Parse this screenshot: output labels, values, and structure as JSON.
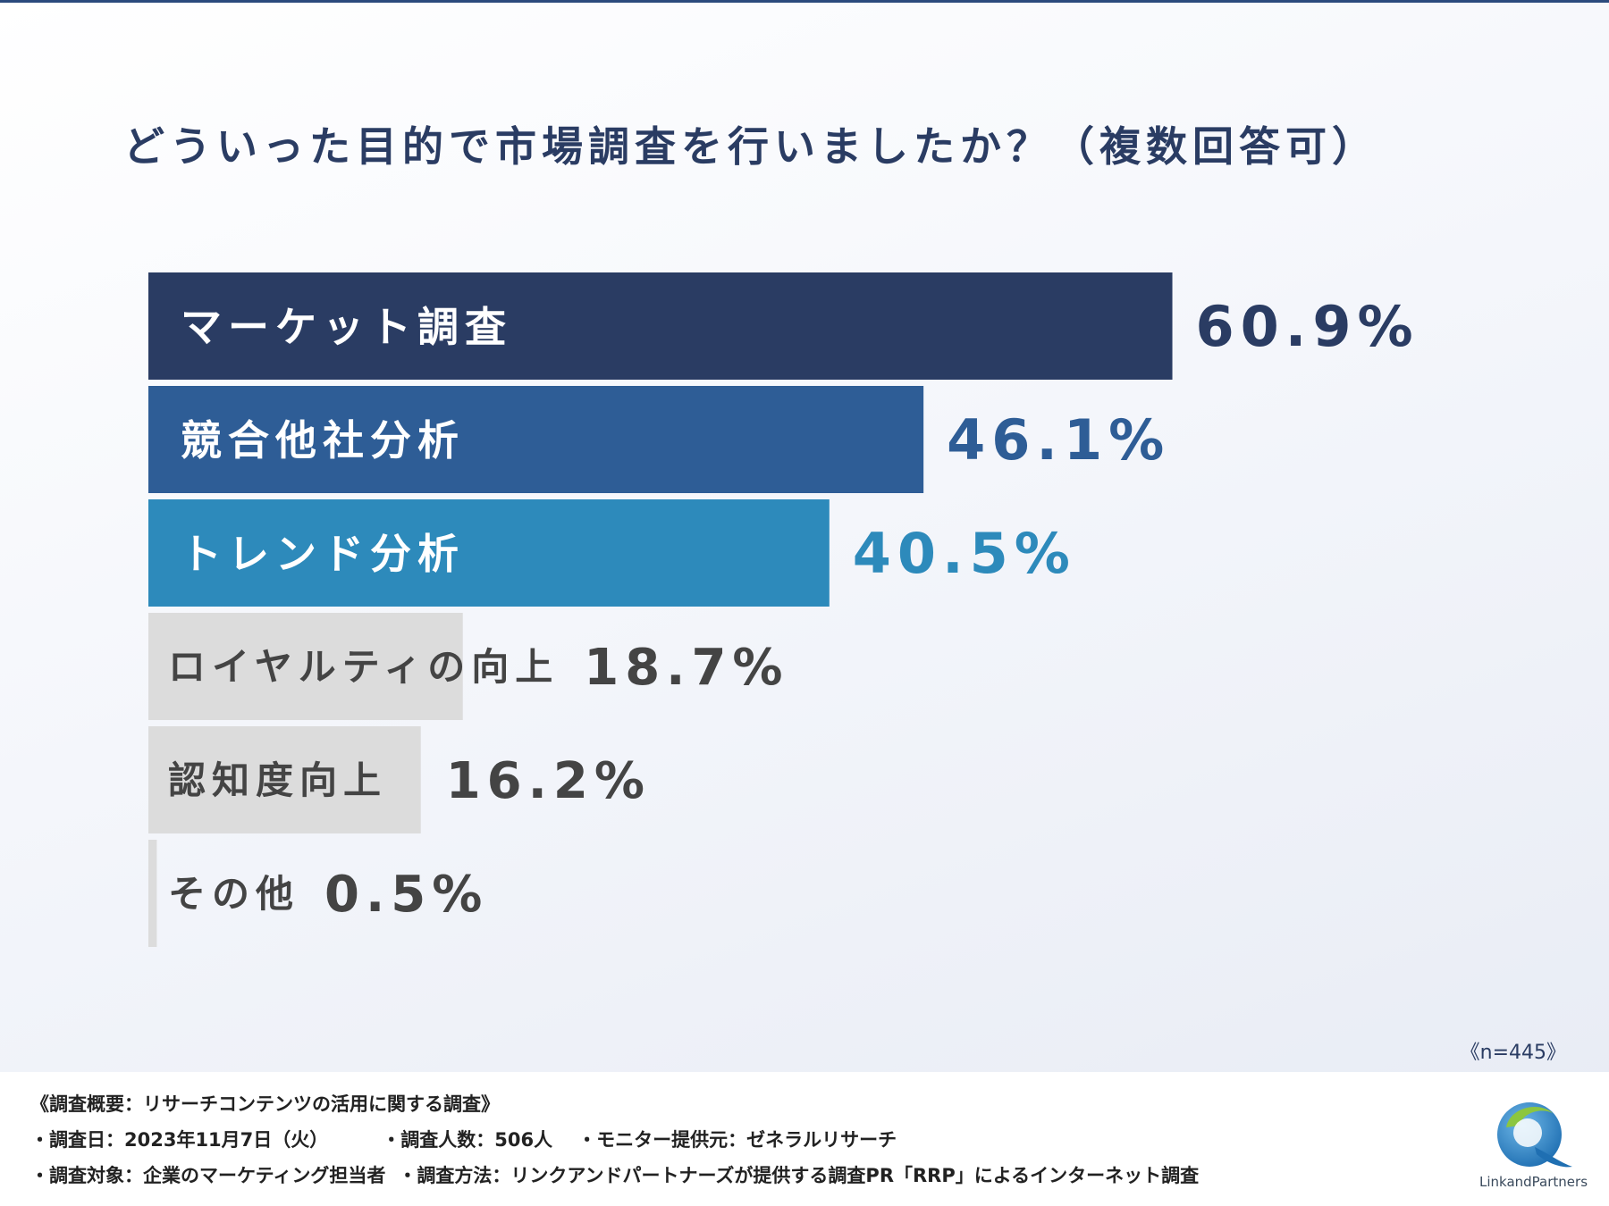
{
  "title": "どういった目的で市場調査を行いましたか？（複数回答可）",
  "chart_data": {
    "type": "bar",
    "orientation": "horizontal",
    "title": "どういった目的で市場調査を行いましたか？（複数回答可）",
    "categories": [
      "マーケット調査",
      "競合他社分析",
      "トレンド分析",
      "ロイヤルティの向上",
      "認知度向上",
      "その他"
    ],
    "values": [
      60.9,
      46.1,
      40.5,
      18.7,
      16.2,
      0.5
    ],
    "value_labels": [
      "60.9%",
      "46.1%",
      "40.5%",
      "18.7%",
      "16.2%",
      "0.5%"
    ],
    "unit": "%",
    "xlim": [
      0,
      100
    ],
    "bar_colors": [
      "#2a3c63",
      "#2e5d96",
      "#2d8abb",
      "#dcdcdc",
      "#dcdcdc",
      "#dcdcdc"
    ],
    "label_colors": [
      "#ffffff",
      "#ffffff",
      "#ffffff",
      "#444444",
      "#444444",
      "#444444"
    ],
    "value_colors": [
      "#2a3c63",
      "#2e5d96",
      "#2d8abb",
      "#444444",
      "#444444",
      "#444444"
    ],
    "grid": false,
    "legend": "none"
  },
  "sample_size": "《n=445》",
  "footer": {
    "heading": "《調査概要：リサーチコンテンツの活用に関する調査》",
    "date": "・調査日：2023年11月7日（火）",
    "respondents": "・調査人数：506人",
    "monitor": "・モニター提供元：ゼネラルリサーチ",
    "target": "・調査対象：企業のマーケティング担当者",
    "method": "・調査方法：リンクアンドパートナーズが提供する調査PR「RRP」によるインターネット調査"
  },
  "logo": {
    "text": "LinkandPartners",
    "colors": {
      "blue": "#1f7ec2",
      "green": "#8cc63f"
    }
  }
}
